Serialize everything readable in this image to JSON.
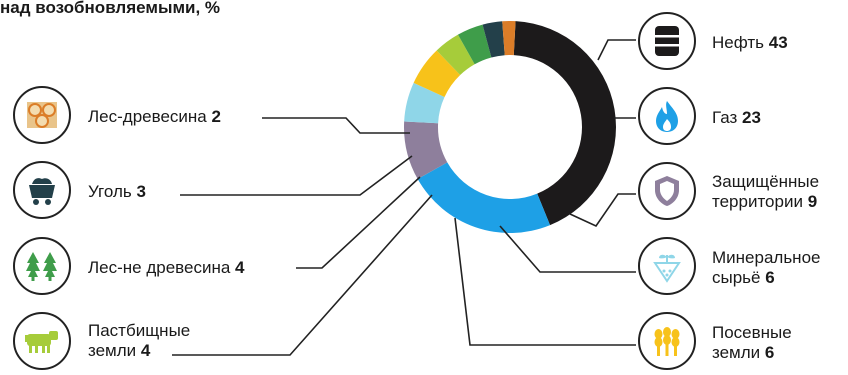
{
  "header": {
    "title_partial": "над возобновляемыми, %"
  },
  "colors": {
    "oil": "#1c1a1b",
    "gas": "#1ea0e6",
    "protected": "#8e7f9c",
    "mineral": "#8fd6e8",
    "crops": "#f7c21a",
    "pasture": "#a6cc3a",
    "forest_nonwood": "#3f9d4a",
    "coal": "#23404a",
    "forest_wood": "#db7d28"
  },
  "chart_data": {
    "type": "pie",
    "donut": true,
    "title": "над возобновляемыми, %",
    "slices": [
      {
        "key": "oil",
        "label": "Нефть",
        "value": 43,
        "icon": "oil-barrel-icon"
      },
      {
        "key": "gas",
        "label": "Газ",
        "value": 23,
        "icon": "gas-flame-icon"
      },
      {
        "key": "protected",
        "label": "Защищённые территории",
        "label_lines": [
          "Защищённые",
          "территории"
        ],
        "value": 9,
        "icon": "shield-icon"
      },
      {
        "key": "mineral",
        "label": "Минеральное сырьё",
        "label_lines": [
          "Минеральное",
          "сырьё"
        ],
        "value": 6,
        "icon": "mineral-plant-icon"
      },
      {
        "key": "crops",
        "label": "Посевные земли",
        "label_lines": [
          "Посевные",
          "земли"
        ],
        "value": 6,
        "icon": "wheat-icon"
      },
      {
        "key": "pasture",
        "label": "Пастбищные земли",
        "label_lines": [
          "Пастбищные",
          "земли"
        ],
        "value": 4,
        "icon": "cow-icon"
      },
      {
        "key": "forest_nonwood",
        "label": "Лес-не древесина",
        "label_lines": [
          "Лес-не древесина"
        ],
        "value": 4,
        "icon": "fir-trees-icon"
      },
      {
        "key": "coal",
        "label": "Уголь",
        "label_lines": [
          "Уголь"
        ],
        "value": 3,
        "icon": "coal-cart-icon"
      },
      {
        "key": "forest_wood",
        "label": "Лес-древесина",
        "label_lines": [
          "Лес-древесина"
        ],
        "value": 2,
        "icon": "logs-icon"
      }
    ]
  }
}
